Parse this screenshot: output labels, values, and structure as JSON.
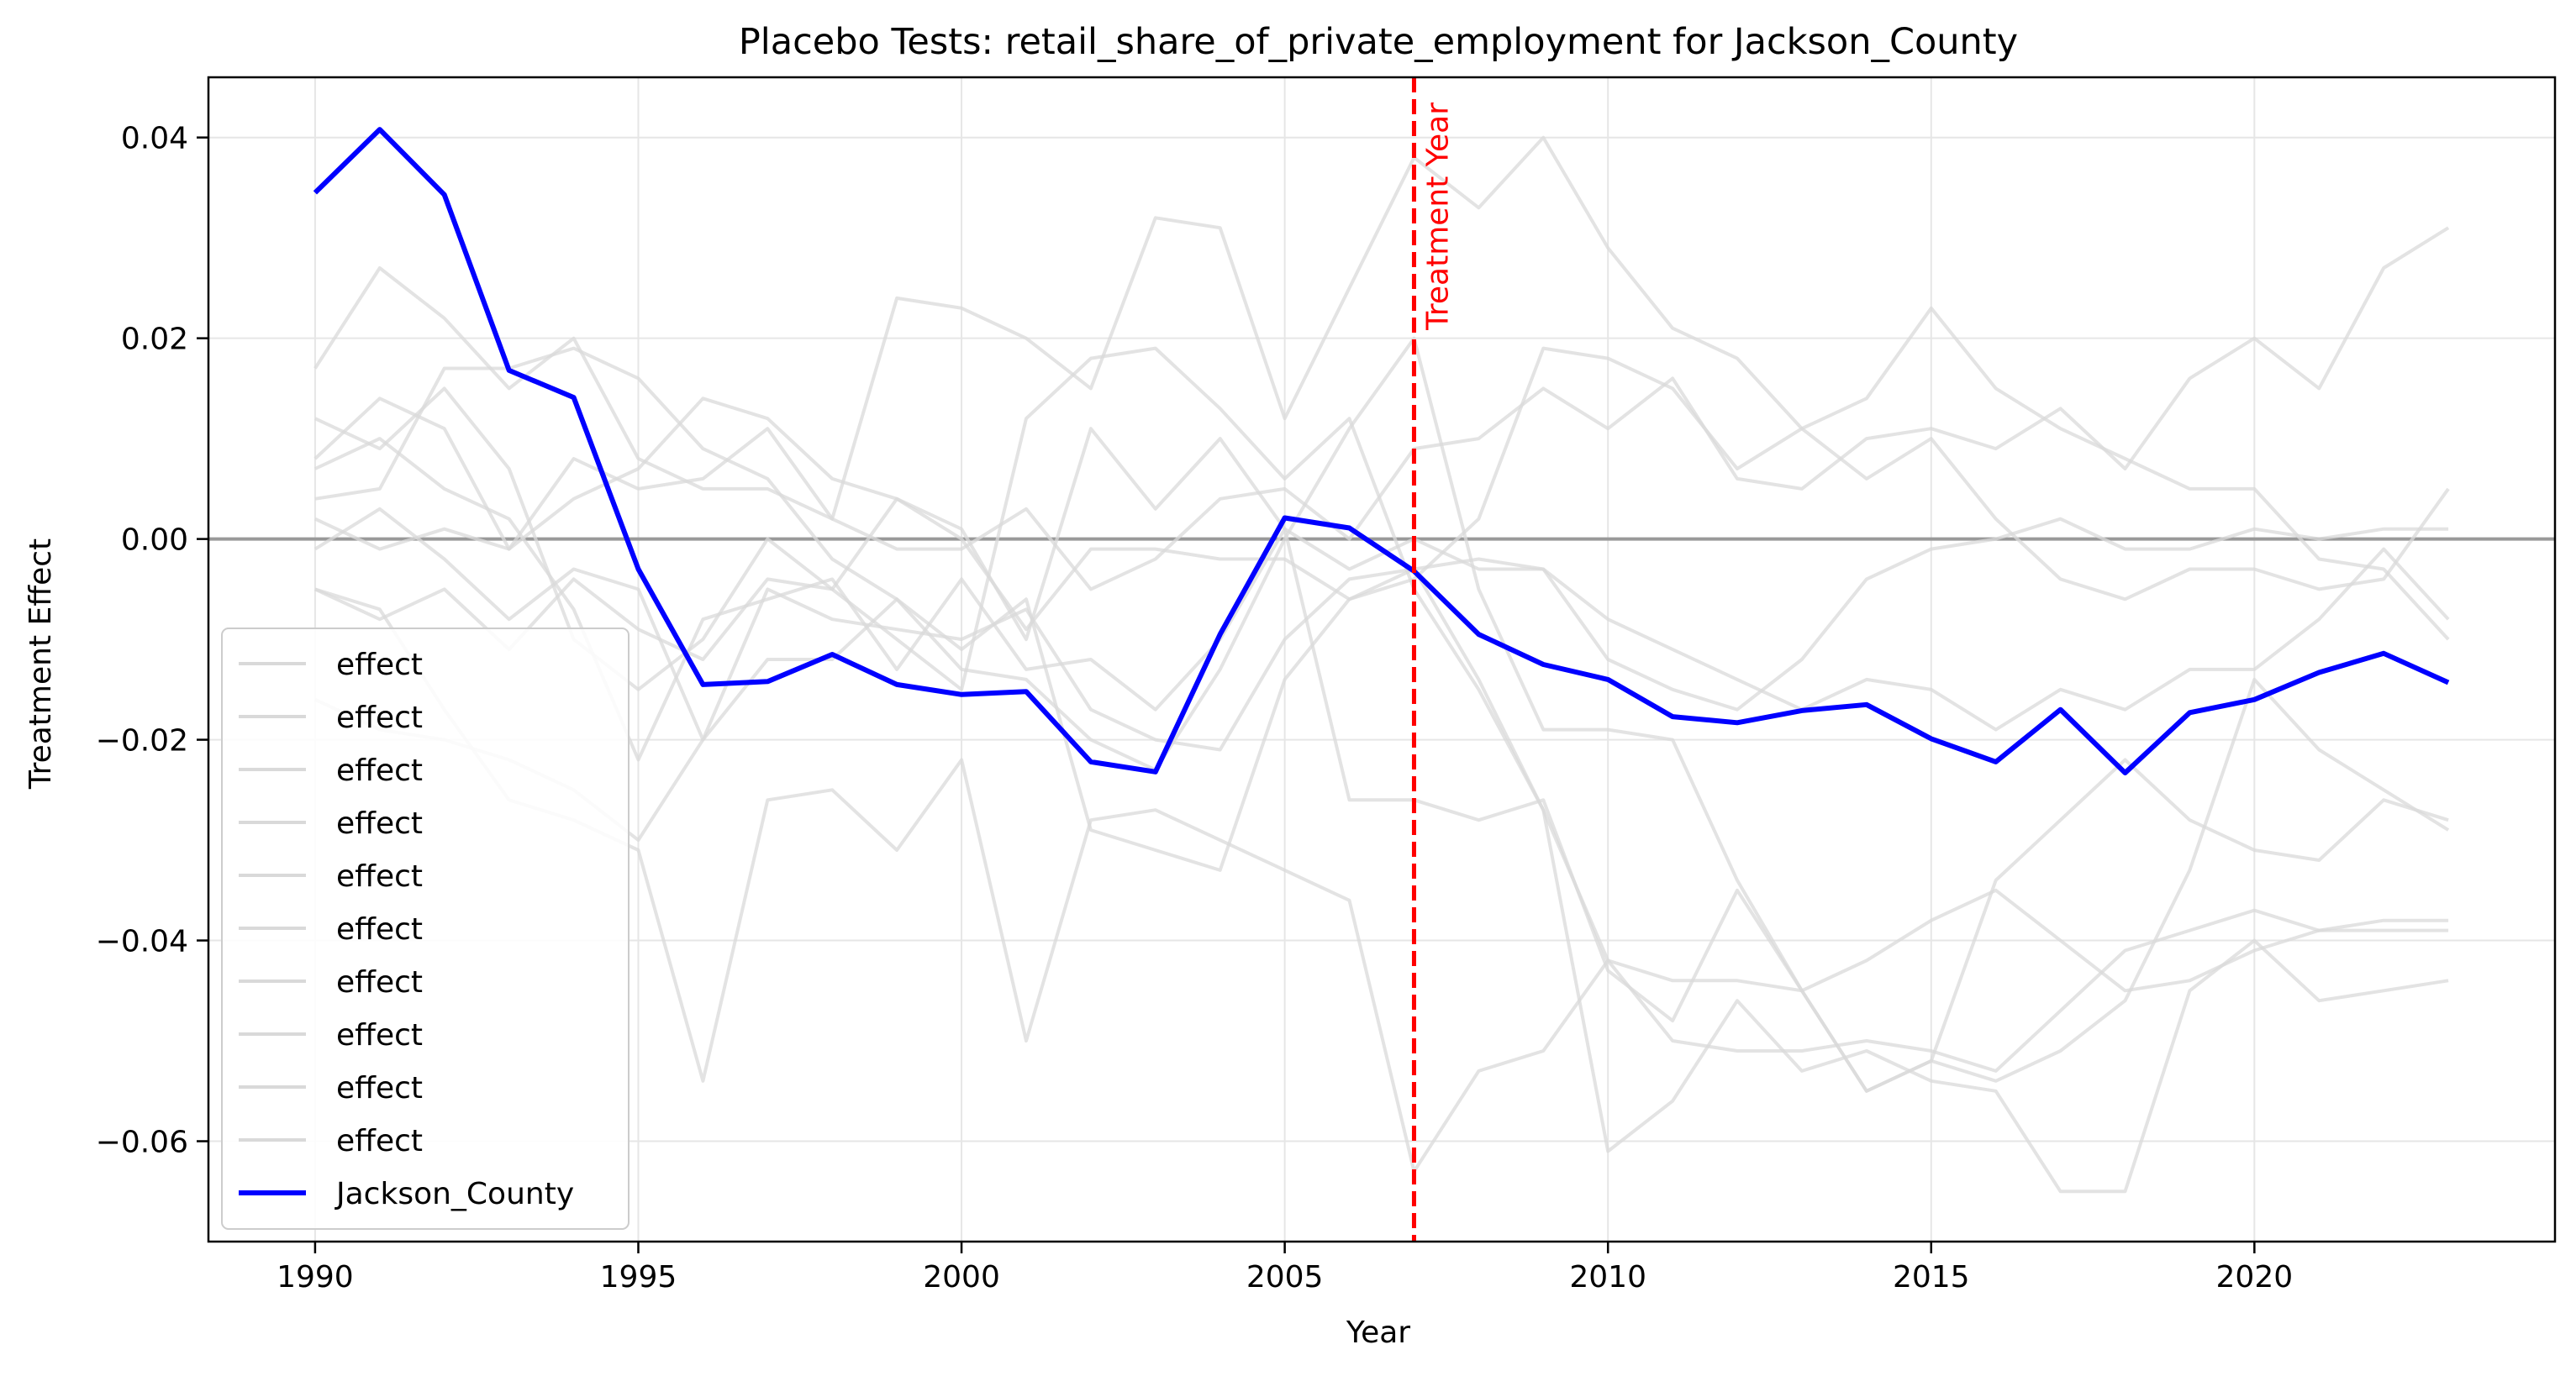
{
  "chart_data": {
    "type": "line",
    "title": "Placebo Tests: retail_share_of_private_employment for Jackson_County",
    "xlabel": "Year",
    "ylabel": "Treatment Effect",
    "xlim": [
      1988.35,
      2024.65
    ],
    "ylim": [
      -0.07,
      0.046
    ],
    "x_ticks": [
      1990,
      1995,
      2000,
      2005,
      2010,
      2015,
      2020
    ],
    "x_tick_labels": [
      "1990",
      "1995",
      "2000",
      "2005",
      "2010",
      "2015",
      "2020"
    ],
    "y_ticks": [
      0.04,
      0.02,
      0.0,
      -0.02,
      -0.04,
      -0.06
    ],
    "y_tick_labels": [
      "0.04",
      "0.02",
      "0.00",
      "−0.02",
      "−0.04",
      "−0.06"
    ],
    "grid": true,
    "legend_position": "lower-left",
    "zero_line": 0,
    "treatment_year": 2007,
    "treatment_label": "Treatment Year",
    "colors": {
      "placebo": "#d9d9d9",
      "treated": "#0000ff",
      "treatment_line": "#ff0000",
      "zero_line": "#999999",
      "grid": "#e6e6e6"
    },
    "x": [
      1990,
      1991,
      1992,
      1993,
      1994,
      1995,
      1996,
      1997,
      1998,
      1999,
      2000,
      2001,
      2002,
      2003,
      2004,
      2005,
      2006,
      2007,
      2008,
      2009,
      2010,
      2011,
      2012,
      2013,
      2014,
      2015,
      2016,
      2017,
      2018,
      2019,
      2020,
      2021,
      2022,
      2023
    ],
    "series": [
      {
        "name": "effect",
        "role": "placebo",
        "values": [
          0.017,
          0.027,
          0.022,
          0.015,
          0.02,
          0.008,
          0.005,
          0.005,
          0.002,
          0.024,
          0.023,
          0.02,
          0.015,
          0.032,
          0.031,
          0.012,
          0.025,
          0.038,
          0.033,
          0.04,
          0.029,
          0.021,
          0.018,
          0.011,
          0.006,
          0.01,
          0.002,
          -0.004,
          -0.006,
          -0.003,
          -0.003,
          -0.005,
          -0.004,
          0.005
        ]
      },
      {
        "name": "effect",
        "role": "placebo",
        "values": [
          0.012,
          0.009,
          0.015,
          0.007,
          -0.01,
          -0.015,
          -0.01,
          0.0,
          -0.005,
          -0.01,
          -0.015,
          0.012,
          0.018,
          0.019,
          0.013,
          0.006,
          0.012,
          -0.005,
          -0.015,
          -0.027,
          -0.042,
          -0.044,
          -0.044,
          -0.045,
          -0.042,
          -0.038,
          -0.035,
          -0.04,
          -0.045,
          -0.044,
          -0.041,
          -0.039,
          -0.038,
          -0.038
        ]
      },
      {
        "name": "effect",
        "role": "placebo",
        "values": [
          0.008,
          0.014,
          0.011,
          -0.001,
          0.008,
          0.005,
          0.006,
          0.011,
          0.002,
          -0.001,
          -0.001,
          0.003,
          -0.005,
          -0.002,
          0.004,
          0.005,
          0.0,
          0.009,
          0.01,
          0.015,
          0.011,
          0.016,
          0.006,
          0.005,
          0.01,
          0.011,
          0.009,
          0.013,
          0.007,
          0.016,
          0.02,
          0.015,
          0.027,
          0.031
        ]
      },
      {
        "name": "effect",
        "role": "placebo",
        "values": [
          0.004,
          0.005,
          0.017,
          0.017,
          0.019,
          0.016,
          0.009,
          0.006,
          -0.002,
          -0.006,
          -0.011,
          -0.006,
          -0.029,
          -0.031,
          -0.033,
          -0.014,
          -0.006,
          -0.003,
          -0.002,
          -0.003,
          -0.008,
          -0.011,
          -0.014,
          -0.017,
          -0.014,
          -0.015,
          -0.019,
          -0.015,
          -0.017,
          -0.013,
          -0.013,
          -0.008,
          -0.001,
          -0.008
        ]
      },
      {
        "name": "effect",
        "role": "placebo",
        "values": [
          0.002,
          -0.001,
          0.001,
          -0.001,
          0.004,
          0.007,
          0.014,
          0.012,
          0.006,
          0.004,
          0.001,
          -0.01,
          0.011,
          0.003,
          0.01,
          0.001,
          -0.003,
          0.0,
          -0.003,
          -0.003,
          -0.012,
          -0.015,
          -0.017,
          -0.012,
          -0.004,
          -0.001,
          0.0,
          0.002,
          -0.001,
          -0.001,
          0.001,
          0.0,
          0.001,
          0.001
        ]
      },
      {
        "name": "effect",
        "role": "placebo",
        "values": [
          -0.001,
          0.003,
          -0.002,
          -0.008,
          -0.003,
          -0.005,
          -0.02,
          -0.005,
          -0.008,
          -0.009,
          -0.01,
          -0.007,
          -0.017,
          -0.02,
          -0.021,
          -0.01,
          -0.004,
          -0.003,
          -0.014,
          -0.027,
          -0.061,
          -0.056,
          -0.046,
          -0.053,
          -0.051,
          -0.054,
          -0.055,
          -0.065,
          -0.065,
          -0.045,
          -0.04,
          -0.046,
          -0.045,
          -0.044
        ]
      },
      {
        "name": "effect",
        "role": "placebo",
        "values": [
          -0.005,
          -0.007,
          -0.017,
          -0.026,
          -0.028,
          -0.031,
          -0.054,
          -0.026,
          -0.025,
          -0.031,
          -0.022,
          -0.05,
          -0.028,
          -0.027,
          -0.03,
          -0.033,
          -0.036,
          -0.063,
          -0.053,
          -0.051,
          -0.042,
          -0.05,
          -0.051,
          -0.051,
          -0.05,
          -0.051,
          -0.053,
          -0.047,
          -0.041,
          -0.039,
          -0.037,
          -0.039,
          -0.039,
          -0.039
        ]
      },
      {
        "name": "effect",
        "role": "placebo",
        "values": [
          0.007,
          0.01,
          0.005,
          0.002,
          -0.007,
          -0.022,
          -0.008,
          -0.006,
          -0.004,
          -0.013,
          -0.004,
          -0.013,
          -0.012,
          -0.017,
          -0.01,
          0.001,
          -0.026,
          -0.026,
          -0.028,
          -0.026,
          -0.043,
          -0.048,
          -0.035,
          -0.045,
          -0.055,
          -0.052,
          -0.034,
          -0.028,
          -0.022,
          -0.028,
          -0.031,
          -0.032,
          -0.026,
          -0.028
        ]
      },
      {
        "name": "effect",
        "role": "placebo",
        "values": [
          -0.016,
          -0.019,
          -0.02,
          -0.022,
          -0.025,
          -0.03,
          -0.02,
          -0.012,
          -0.012,
          -0.006,
          -0.013,
          -0.014,
          -0.02,
          -0.023,
          -0.013,
          0.0,
          0.011,
          0.02,
          -0.005,
          -0.019,
          -0.019,
          -0.02,
          -0.034,
          -0.045,
          -0.055,
          -0.052,
          -0.054,
          -0.051,
          -0.046,
          -0.033,
          -0.014,
          -0.021,
          -0.025,
          -0.029
        ]
      },
      {
        "name": "effect",
        "role": "placebo",
        "values": [
          -0.005,
          -0.008,
          -0.005,
          -0.011,
          -0.004,
          -0.009,
          -0.012,
          -0.004,
          -0.005,
          0.004,
          0.0,
          -0.009,
          -0.001,
          -0.001,
          -0.002,
          -0.002,
          -0.006,
          -0.004,
          0.002,
          0.019,
          0.018,
          0.015,
          0.007,
          0.011,
          0.014,
          0.023,
          0.015,
          0.011,
          0.008,
          0.005,
          0.005,
          -0.002,
          -0.003,
          -0.01
        ]
      },
      {
        "name": "Jackson_County",
        "role": "treated",
        "values": [
          0.0345,
          0.0408,
          0.0343,
          0.0168,
          0.0141,
          -0.003,
          -0.0145,
          -0.0142,
          -0.0115,
          -0.0145,
          -0.0155,
          -0.0152,
          -0.0222,
          -0.0232,
          -0.0095,
          0.0021,
          0.0011,
          -0.0032,
          -0.0095,
          -0.0125,
          -0.014,
          -0.0177,
          -0.0183,
          -0.0171,
          -0.0165,
          -0.0199,
          -0.0222,
          -0.017,
          -0.0233,
          -0.0173,
          -0.016,
          -0.0133,
          -0.0114,
          -0.0143
        ]
      }
    ]
  }
}
